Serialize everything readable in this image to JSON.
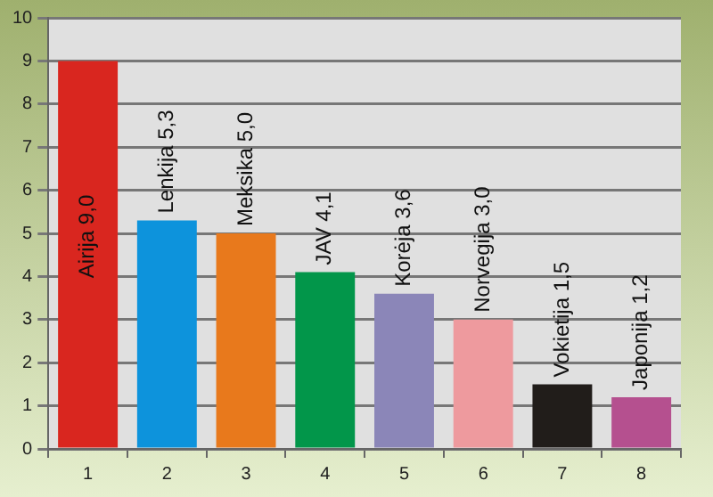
{
  "chart_data": {
    "type": "bar",
    "categories": [
      "1",
      "2",
      "3",
      "4",
      "5",
      "6",
      "7",
      "8"
    ],
    "values": [
      9.0,
      5.3,
      5.0,
      4.1,
      3.6,
      3.0,
      1.5,
      1.2
    ],
    "colors": [
      "#d9261f",
      "#0d93dc",
      "#e8791c",
      "#02964a",
      "#8b86b8",
      "#ee9a9e",
      "#211d1a",
      "#b5508f"
    ],
    "value_labels": [
      "Airija 9,0",
      "Lenkija 5,3",
      "Meksika 5,0",
      "JAV 4,1",
      "Korėja 3,6",
      "Norvegija 3,0",
      "Vokietija 1,5",
      "Japonija 1,2"
    ],
    "ylim": [
      0,
      10
    ],
    "yticks": [
      0,
      1,
      2,
      3,
      4,
      5,
      6,
      7,
      8,
      9,
      10
    ],
    "grid": "y",
    "legend": false
  }
}
